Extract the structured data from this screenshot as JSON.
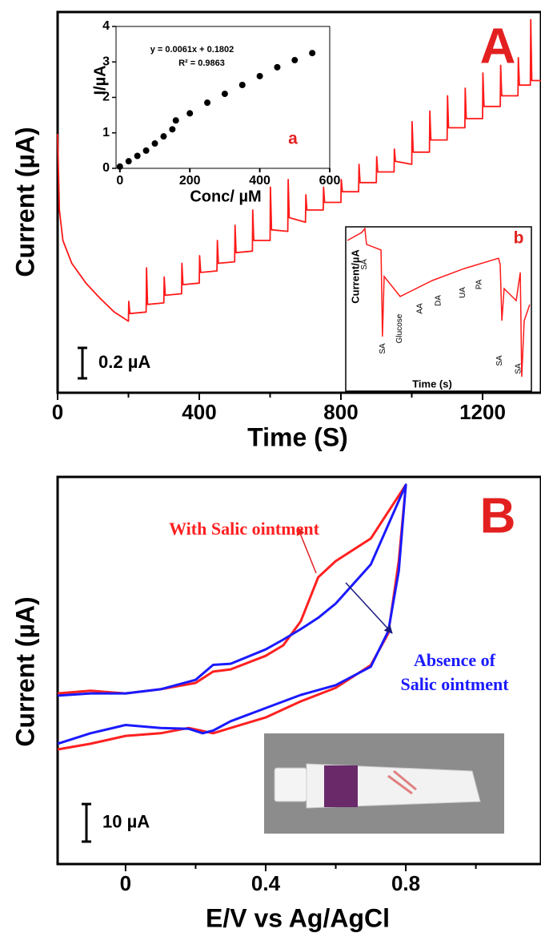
{
  "chart_data": [
    {
      "type": "line",
      "panel_label": "A",
      "xlabel": "Time (S)",
      "ylabel": "Current (µA)",
      "xlim": [
        0,
        1365
      ],
      "xticks": [
        0,
        400,
        800,
        1200
      ],
      "xminorticks": [
        200,
        600,
        1000
      ],
      "ylim": [
        0,
        2.5
      ],
      "scale_bar": {
        "value": 0.2,
        "label": "0.2 µA"
      },
      "x": [
        0,
        5,
        15,
        40,
        80,
        120,
        160,
        200,
        201,
        204,
        250,
        251,
        254,
        300,
        301,
        304,
        350,
        351,
        354,
        400,
        401,
        404,
        450,
        451,
        454,
        500,
        501,
        504,
        550,
        551,
        554,
        600,
        601,
        604,
        650,
        651,
        654,
        700,
        701,
        704,
        750,
        751,
        754,
        800,
        801,
        804,
        850,
        851,
        854,
        900,
        901,
        904,
        950,
        951,
        954,
        1000,
        1001,
        1004,
        1050,
        1051,
        1054,
        1100,
        1101,
        1104,
        1150,
        1151,
        1154,
        1200,
        1201,
        1204,
        1250,
        1251,
        1254,
        1300,
        1301,
        1304,
        1335,
        1336,
        1339,
        1365
      ],
      "series": [
        {
          "color": "#ff1a1a",
          "values": [
            1.7,
            1.2,
            1.0,
            0.85,
            0.72,
            0.62,
            0.53,
            0.47,
            0.6,
            0.52,
            0.53,
            0.82,
            0.58,
            0.59,
            0.76,
            0.64,
            0.65,
            0.85,
            0.71,
            0.72,
            0.9,
            0.79,
            0.8,
            1.0,
            0.85,
            0.86,
            1.1,
            0.92,
            0.93,
            1.2,
            1.0,
            1.0,
            1.35,
            1.07,
            1.06,
            1.4,
            1.15,
            1.12,
            1.3,
            1.2,
            1.2,
            1.35,
            1.25,
            1.25,
            1.4,
            1.32,
            1.32,
            1.5,
            1.38,
            1.38,
            1.55,
            1.45,
            1.45,
            1.6,
            1.52,
            1.5,
            1.78,
            1.58,
            1.58,
            1.85,
            1.66,
            1.66,
            1.95,
            1.74,
            1.74,
            2.0,
            1.8,
            1.8,
            2.1,
            1.88,
            1.88,
            2.15,
            1.95,
            1.95,
            2.2,
            2.02,
            2.02,
            2.45,
            2.05,
            2.05
          ]
        }
      ]
    },
    {
      "type": "scatter",
      "label": "a",
      "xlabel": "Conc/ µM",
      "ylabel": "I/µA",
      "equation": [
        "y = 0.0061x + 0.1802",
        "R² = 0.9863"
      ],
      "xlim": [
        -11,
        600
      ],
      "xticks": [
        0,
        200,
        400,
        600
      ],
      "ylim": [
        0,
        4
      ],
      "yticks": [
        0,
        1,
        2,
        3,
        4
      ],
      "x": [
        0,
        25,
        50,
        75,
        100,
        125,
        150,
        160,
        200,
        250,
        300,
        350,
        400,
        450,
        500,
        550
      ],
      "values": [
        0.05,
        0.2,
        0.35,
        0.5,
        0.7,
        0.9,
        1.1,
        1.35,
        1.55,
        1.85,
        2.1,
        2.35,
        2.6,
        2.85,
        3.05,
        3.25
      ],
      "color": "#000000"
    },
    {
      "type": "line",
      "label": "b",
      "xlabel": "Time (s)",
      "ylabel": "Current/µA",
      "xlim": [
        0,
        100
      ],
      "ylim": [
        0,
        100
      ],
      "x": [
        0.9,
        8.6,
        10.3,
        11.2,
        19,
        19.8,
        20.7,
        29.3,
        46.6,
        63.8,
        82.3,
        83.2,
        84.1,
        85.3,
        91.8,
        94,
        94.8,
        96.1,
        99.1
      ],
      "values": [
        91.7,
        96.6,
        99,
        89.3,
        85.9,
        33.2,
        69.8,
        57.6,
        67.3,
        74.6,
        80.9,
        77.1,
        42.9,
        62.4,
        55.1,
        72.2,
        8.8,
        42.9,
        52.7
      ],
      "color": "#ff1a1a",
      "events": [
        {
          "label": "SA",
          "x": 10
        },
        {
          "label": "SA",
          "x": 20
        },
        {
          "label": "Glucose",
          "x": 29
        },
        {
          "label": "AA",
          "x": 40
        },
        {
          "label": "DA",
          "x": 50
        },
        {
          "label": "UA",
          "x": 63
        },
        {
          "label": "PA",
          "x": 72
        },
        {
          "label": "SA",
          "x": 83
        },
        {
          "label": "SA",
          "x": 93
        }
      ]
    },
    {
      "type": "line",
      "panel_label": "B",
      "xlabel": "E/V vs Ag/AgCl",
      "ylabel": "Current (µA)",
      "xlim": [
        -0.194,
        1.186
      ],
      "xticks": [
        0,
        0.4,
        0.8
      ],
      "xminorticks": [
        0.2,
        0.6,
        1.0
      ],
      "ylim": [
        0,
        103
      ],
      "scale_bar": {
        "value": 10,
        "label": "10 µA"
      },
      "series": [
        {
          "label": [
            "With Salic ointment"
          ],
          "color": "#ff2020",
          "x": [
            -0.194,
            -0.1,
            0,
            0.1,
            0.2,
            0.25,
            0.3,
            0.4,
            0.45,
            0.5,
            0.55,
            0.6,
            0.7,
            0.8,
            0.78,
            0.75,
            0.7,
            0.6,
            0.5,
            0.4,
            0.3,
            0.25,
            0.22,
            0.18,
            0.1,
            0,
            -0.1,
            -0.194
          ],
          "values": [
            45.4,
            46.1,
            45.4,
            46.5,
            48.2,
            51.2,
            51.8,
            55.4,
            58.2,
            64.6,
            76.3,
            80.6,
            86.6,
            100.9,
            80.6,
            61.4,
            52.9,
            46.9,
            43.3,
            39.0,
            36.2,
            34.8,
            35.4,
            36.2,
            34.8,
            34.1,
            32.0,
            30.5
          ]
        },
        {
          "label": [
            "Absence of",
            "Salic ointment"
          ],
          "color": "#1a1aff",
          "x": [
            -0.194,
            -0.1,
            0,
            0.1,
            0.2,
            0.25,
            0.3,
            0.4,
            0.45,
            0.5,
            0.55,
            0.6,
            0.7,
            0.8,
            0.78,
            0.75,
            0.7,
            0.6,
            0.5,
            0.4,
            0.3,
            0.25,
            0.22,
            0.18,
            0.1,
            0,
            -0.1,
            -0.194
          ],
          "values": [
            44.8,
            45.4,
            45.4,
            46.5,
            49.0,
            53.0,
            53.3,
            57.1,
            59.7,
            62.5,
            65.5,
            69.3,
            79.7,
            100.9,
            78,
            62,
            52.5,
            47.6,
            45,
            41.5,
            38,
            35.5,
            34.8,
            36,
            36.2,
            37,
            34.8,
            32
          ]
        }
      ]
    }
  ]
}
